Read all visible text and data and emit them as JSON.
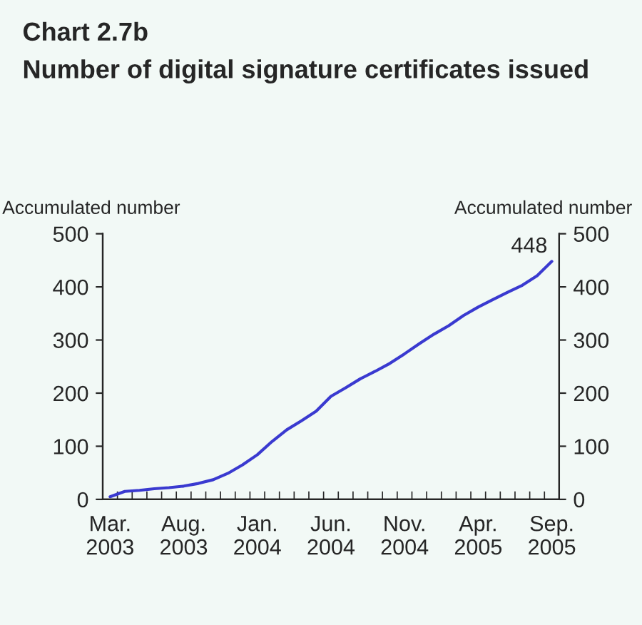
{
  "chart_data": {
    "type": "line",
    "title": "Chart 2.7b",
    "subtitle": "Number of digital signature certificates issued",
    "ylabel": "Accumulated number",
    "y2label": "Accumulated number",
    "categories": [
      "Mar.\n2003",
      null,
      null,
      null,
      null,
      "Aug.\n2003",
      null,
      null,
      null,
      null,
      "Jan.\n2004",
      null,
      null,
      null,
      null,
      "Jun.\n2004",
      null,
      null,
      null,
      null,
      "Nov.\n2004",
      null,
      null,
      null,
      null,
      "Apr.\n2005",
      null,
      null,
      null,
      null,
      "Sep.\n2005"
    ],
    "series": [
      {
        "color": "#3a3ad0",
        "values": [
          5,
          15,
          17,
          20,
          22,
          25,
          30,
          37,
          49,
          65,
          84,
          109,
          131,
          148,
          166,
          194,
          210,
          227,
          241,
          256,
          274,
          293,
          311,
          327,
          346,
          362,
          376,
          390,
          403,
          421,
          448
        ],
        "value_labels": [
          null,
          null,
          null,
          null,
          null,
          null,
          null,
          null,
          null,
          null,
          null,
          null,
          null,
          null,
          null,
          null,
          null,
          null,
          null,
          null,
          null,
          null,
          null,
          null,
          null,
          null,
          null,
          null,
          null,
          null,
          "448"
        ]
      }
    ],
    "ylim": [
      0,
      500
    ],
    "yticks": [
      0,
      100,
      200,
      300,
      400,
      500
    ],
    "y2lim": [
      0,
      500
    ],
    "y2ticks": [
      0,
      100,
      200,
      300,
      400,
      500
    ],
    "grid": false,
    "legend": false
  }
}
